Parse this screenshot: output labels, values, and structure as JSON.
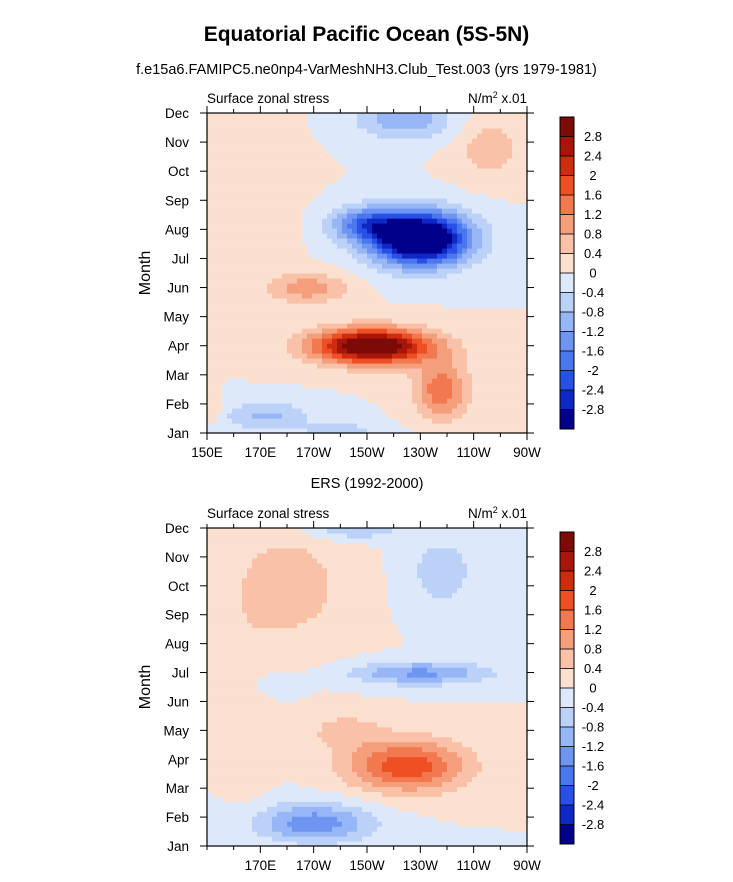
{
  "title": "Equatorial Pacific Ocean (5S-5N)",
  "subtitle": "f.e15a6.FAMIPC5.ne0np4-VarMeshNH3.Club_Test.003 (yrs 1979-1981)",
  "colors": {
    "levels": [
      "#00008a",
      "#0f27c6",
      "#2950e6",
      "#4a76ee",
      "#6f95f2",
      "#97b6f5",
      "#bcd1f7",
      "#dde8fa",
      "#fbdfcf",
      "#f8c1a8",
      "#f59e7c",
      "#f2784f",
      "#ee5024",
      "#cf2c0e",
      "#a8150a",
      "#7c0a06"
    ]
  },
  "chart_data": [
    {
      "type": "heatmap",
      "panel_title": "",
      "left_label": "Surface zonal stress",
      "units_label": "N/m",
      "units_sup": "2",
      "units_scale": " x.01",
      "ylabel": "Month",
      "y_categories": [
        "Jan",
        "Feb",
        "Mar",
        "Apr",
        "May",
        "Jun",
        "Jul",
        "Aug",
        "Sep",
        "Oct",
        "Nov",
        "Dec"
      ],
      "x_range": [
        150,
        270
      ],
      "x_tick_values": [
        150,
        170,
        190,
        210,
        230,
        250,
        270
      ],
      "x_tick_labels": [
        "150E",
        "170E",
        "170W",
        "150W",
        "130W",
        "110W",
        "90W"
      ],
      "colorbar_labels": [
        "2.8",
        "2.4",
        "2",
        "1.6",
        "1.2",
        "0.8",
        "0.4",
        "0",
        "-0.4",
        "-0.8",
        "-1.2",
        "-1.6",
        "-2",
        "-2.4",
        "-2.8"
      ],
      "contour_levels": [
        -2.8,
        -2.4,
        -2,
        -1.6,
        -1.2,
        -0.8,
        -0.4,
        0,
        0.4,
        0.8,
        1.2,
        1.6,
        2,
        2.4,
        2.8
      ],
      "features": [
        {
          "lon": 230,
          "month": 6.7,
          "lon_width": 18,
          "month_width": 0.9,
          "amp": -4.2
        },
        {
          "lon": 210,
          "month": 7.2,
          "lon_width": 14,
          "month_width": 0.6,
          "amp": -1.6
        },
        {
          "lon": 224,
          "month": 10.8,
          "lon_width": 18,
          "month_width": 0.7,
          "amp": -1.1
        },
        {
          "lon": 212,
          "month": 3.0,
          "lon_width": 22,
          "month_width": 0.6,
          "amp": 3.6
        },
        {
          "lon": 238,
          "month": 1.5,
          "lon_width": 10,
          "month_width": 1.0,
          "amp": 1.5
        },
        {
          "lon": 188,
          "month": 5.0,
          "lon_width": 14,
          "month_width": 0.5,
          "amp": 1.1
        },
        {
          "lon": 168,
          "month": 8.0,
          "lon_width": 14,
          "month_width": 2.5,
          "amp": 0.35
        },
        {
          "lon": 256,
          "month": 9.8,
          "lon_width": 12,
          "month_width": 1.0,
          "amp": 0.7
        },
        {
          "lon": 172,
          "month": 0.6,
          "lon_width": 16,
          "month_width": 0.5,
          "amp": -0.9
        },
        {
          "lon": 200,
          "month": 0.0,
          "lon_width": 14,
          "month_width": 0.4,
          "amp": -0.7
        },
        {
          "lon": 152,
          "month": 0.8,
          "lon_width": 4,
          "month_width": 0.4,
          "amp": 0.5
        }
      ]
    },
    {
      "type": "heatmap",
      "panel_title": "ERS (1992-2000)",
      "left_label": "Surface zonal stress",
      "units_label": "N/m",
      "units_sup": "2",
      "units_scale": " x.01",
      "ylabel": "Month",
      "y_categories": [
        "Jan",
        "Feb",
        "Mar",
        "Apr",
        "May",
        "Jun",
        "Jul",
        "Aug",
        "Sep",
        "Oct",
        "Nov",
        "Dec"
      ],
      "x_range": [
        150,
        270
      ],
      "x_tick_values": [
        170,
        190,
        210,
        230,
        250,
        270
      ],
      "x_tick_labels": [
        "170E",
        "170W",
        "150W",
        "130W",
        "110W",
        "90W"
      ],
      "colorbar_labels": [
        "2.8",
        "2.4",
        "2",
        "1.6",
        "1.2",
        "0.8",
        "0.4",
        "0",
        "-0.4",
        "-0.8",
        "-1.2",
        "-1.6",
        "-2",
        "-2.4",
        "-2.8"
      ],
      "contour_levels": [
        -2.8,
        -2.4,
        -2,
        -1.6,
        -1.2,
        -0.8,
        -0.4,
        0,
        0.4,
        0.8,
        1.2,
        1.6,
        2,
        2.4,
        2.8
      ],
      "features": [
        {
          "lon": 225,
          "month": 2.8,
          "lon_width": 22,
          "month_width": 0.9,
          "amp": 1.9
        },
        {
          "lon": 202,
          "month": 4.0,
          "lon_width": 14,
          "month_width": 0.6,
          "amp": 0.6
        },
        {
          "lon": 230,
          "month": 6.0,
          "lon_width": 26,
          "month_width": 0.4,
          "amp": -1.3
        },
        {
          "lon": 190,
          "month": 0.8,
          "lon_width": 22,
          "month_width": 0.7,
          "amp": -1.5
        },
        {
          "lon": 205,
          "month": 11.0,
          "lon_width": 18,
          "month_width": 0.4,
          "amp": -0.8
        },
        {
          "lon": 238,
          "month": 9.5,
          "lon_width": 14,
          "month_width": 1.4,
          "amp": -0.6
        },
        {
          "lon": 180,
          "month": 9.0,
          "lon_width": 24,
          "month_width": 2.2,
          "amp": 0.6
        },
        {
          "lon": 165,
          "month": 4.5,
          "lon_width": 8,
          "month_width": 3.0,
          "amp": 0.3
        },
        {
          "lon": 175,
          "month": 5.6,
          "lon_width": 10,
          "month_width": 0.4,
          "amp": -0.4
        }
      ]
    }
  ]
}
